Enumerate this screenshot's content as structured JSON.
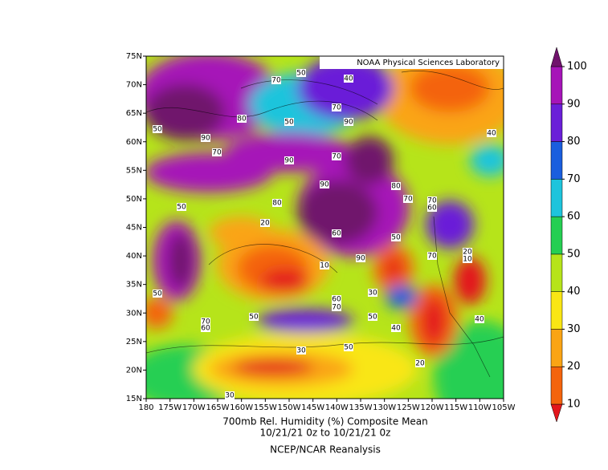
{
  "map": {
    "banner": "NOAA Physical Sciences Laboratory",
    "title": "700mb Rel. Humidity (%)   Composite Mean",
    "subtitle": "10/21/21 0z  to 10/21/21 0z",
    "credit": "NCEP/NCAR Reanalysis",
    "lat_labels": [
      "75N",
      "70N",
      "65N",
      "60N",
      "55N",
      "50N",
      "45N",
      "40N",
      "35N",
      "30N",
      "25N",
      "20N",
      "15N"
    ],
    "lon_labels": [
      "180",
      "175W",
      "170W",
      "165W",
      "160W",
      "155W",
      "150W",
      "145W",
      "140W",
      "135W",
      "130W",
      "125W",
      "120W",
      "115W",
      "110W",
      "105W"
    ],
    "colorbar": {
      "ticks": [
        10,
        20,
        30,
        40,
        50,
        60,
        70,
        80,
        90,
        100
      ],
      "colors": [
        "#e3161c",
        "#f4640c",
        "#faa414",
        "#f9e614",
        "#b6e41a",
        "#25cf52",
        "#1ec4dc",
        "#1a5ede",
        "#6a1fd8",
        "#a614b8",
        "#70126c"
      ]
    },
    "contour_labels": [
      "70",
      "50",
      "40",
      "70",
      "80",
      "50",
      "90",
      "50",
      "90",
      "40",
      "70",
      "90",
      "70",
      "90",
      "80",
      "70",
      "70",
      "60",
      "50",
      "80",
      "20",
      "60",
      "50",
      "10",
      "90",
      "70",
      "20",
      "10",
      "50",
      "60",
      "70",
      "50",
      "40",
      "70",
      "60",
      "40",
      "50",
      "30",
      "20",
      "30",
      "30",
      "50"
    ]
  }
}
